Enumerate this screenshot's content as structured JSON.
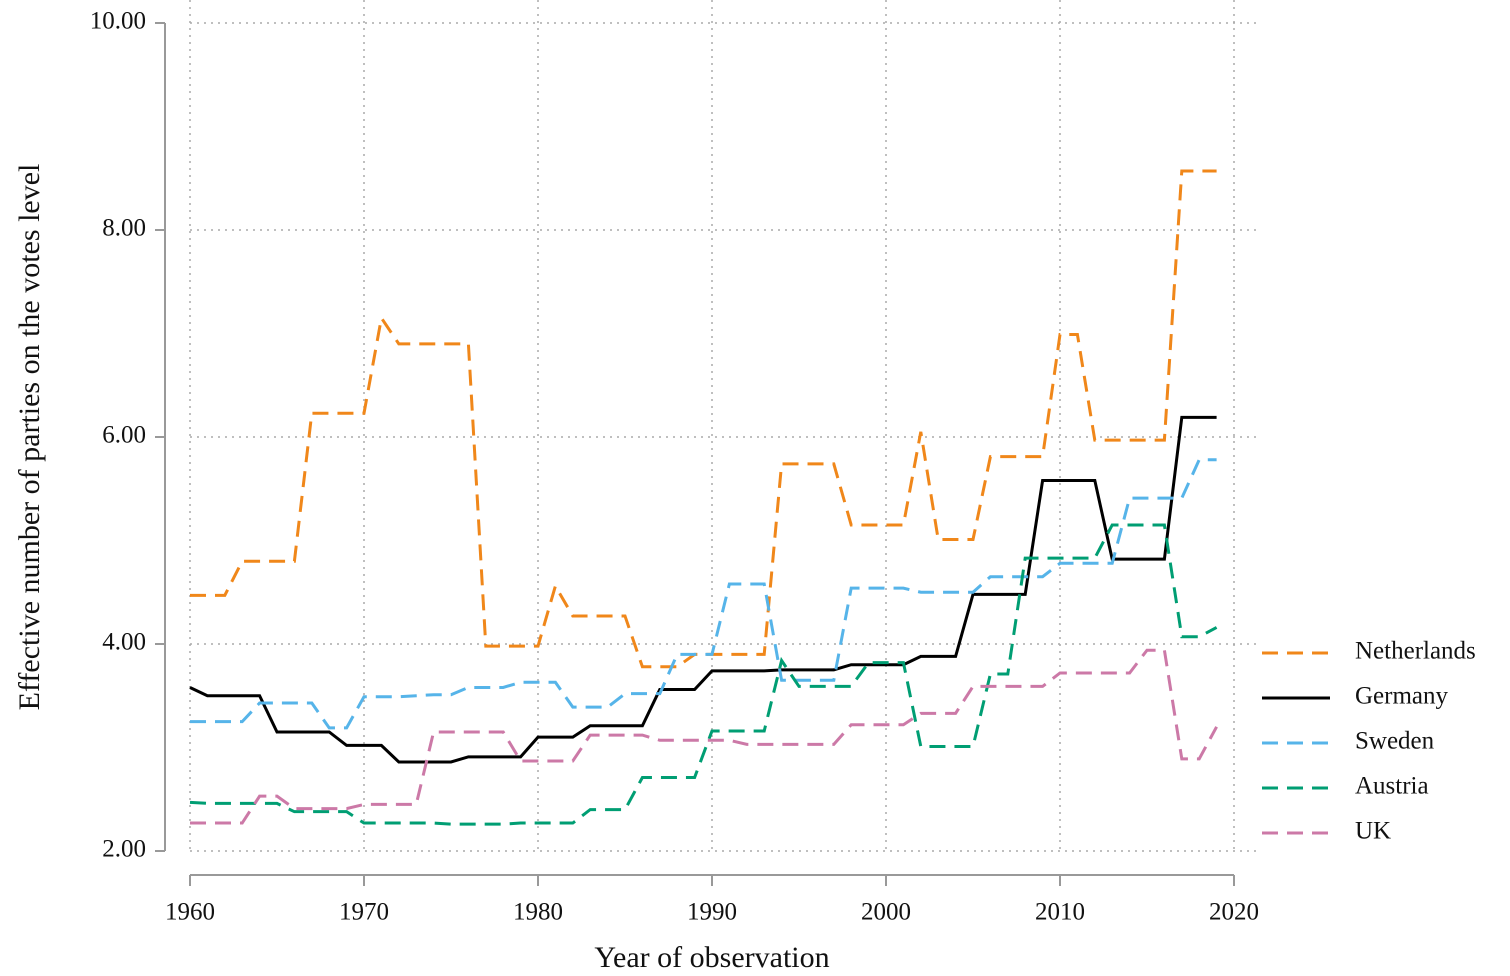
{
  "chart_data": {
    "type": "line",
    "y_label": "Effective number of parties on the votes level",
    "x_label": "Year of observation",
    "x": [
      1960,
      1961,
      1962,
      1963,
      1964,
      1965,
      1966,
      1967,
      1968,
      1969,
      1970,
      1971,
      1972,
      1973,
      1974,
      1975,
      1976,
      1977,
      1978,
      1979,
      1980,
      1981,
      1982,
      1983,
      1984,
      1985,
      1986,
      1987,
      1988,
      1989,
      1990,
      1991,
      1992,
      1993,
      1994,
      1995,
      1996,
      1997,
      1998,
      1999,
      2000,
      2001,
      2002,
      2003,
      2004,
      2005,
      2006,
      2007,
      2008,
      2009,
      2010,
      2011,
      2012,
      2013,
      2014,
      2015,
      2016,
      2017,
      2018,
      2019
    ],
    "series": [
      {
        "name": "Netherlands",
        "color": "#f0871a",
        "linestyle": "dashed",
        "values": [
          4.47,
          4.47,
          4.47,
          4.8,
          4.8,
          4.8,
          4.8,
          6.23,
          6.23,
          6.23,
          6.23,
          7.15,
          6.9,
          6.9,
          6.9,
          6.9,
          6.9,
          3.98,
          3.98,
          3.98,
          3.98,
          4.56,
          4.27,
          4.27,
          4.27,
          4.27,
          3.78,
          3.78,
          3.78,
          3.9,
          3.9,
          3.9,
          3.9,
          3.9,
          5.74,
          5.74,
          5.74,
          5.74,
          5.15,
          5.15,
          5.15,
          5.15,
          6.05,
          5.01,
          5.01,
          5.01,
          5.81,
          5.81,
          5.81,
          5.81,
          6.99,
          6.99,
          5.97,
          5.97,
          5.97,
          5.97,
          5.97,
          8.57,
          8.57,
          8.57
        ]
      },
      {
        "name": "Germany",
        "color": "#000000",
        "linestyle": "solid",
        "values": [
          3.58,
          3.5,
          3.5,
          3.5,
          3.5,
          3.15,
          3.15,
          3.15,
          3.15,
          3.02,
          3.02,
          3.02,
          2.86,
          2.86,
          2.86,
          2.86,
          2.91,
          2.91,
          2.91,
          2.91,
          3.1,
          3.1,
          3.1,
          3.21,
          3.21,
          3.21,
          3.21,
          3.56,
          3.56,
          3.56,
          3.74,
          3.74,
          3.74,
          3.74,
          3.75,
          3.75,
          3.75,
          3.75,
          3.8,
          3.8,
          3.8,
          3.8,
          3.88,
          3.88,
          3.88,
          4.48,
          4.48,
          4.48,
          4.48,
          5.58,
          5.58,
          5.58,
          5.58,
          4.82,
          4.82,
          4.82,
          4.82,
          6.19,
          6.19,
          6.19
        ]
      },
      {
        "name": "Sweden",
        "color": "#56b4e9",
        "linestyle": "dashed",
        "values": [
          3.25,
          3.25,
          3.25,
          3.25,
          3.43,
          3.43,
          3.43,
          3.43,
          3.19,
          3.19,
          3.49,
          3.49,
          3.49,
          3.5,
          3.51,
          3.51,
          3.58,
          3.58,
          3.58,
          3.63,
          3.63,
          3.63,
          3.39,
          3.39,
          3.39,
          3.52,
          3.52,
          3.52,
          3.9,
          3.9,
          3.9,
          4.58,
          4.58,
          4.58,
          3.65,
          3.65,
          3.65,
          3.65,
          4.54,
          4.54,
          4.54,
          4.54,
          4.5,
          4.5,
          4.5,
          4.5,
          4.65,
          4.65,
          4.65,
          4.65,
          4.78,
          4.78,
          4.78,
          4.78,
          5.41,
          5.41,
          5.41,
          5.41,
          5.78,
          5.78
        ]
      },
      {
        "name": "Austria",
        "color": "#009e73",
        "linestyle": "dashed",
        "values": [
          2.47,
          2.46,
          2.46,
          2.46,
          2.46,
          2.46,
          2.38,
          2.38,
          2.38,
          2.38,
          2.27,
          2.27,
          2.27,
          2.27,
          2.27,
          2.26,
          2.26,
          2.26,
          2.26,
          2.27,
          2.27,
          2.27,
          2.27,
          2.4,
          2.4,
          2.4,
          2.71,
          2.71,
          2.71,
          2.71,
          3.16,
          3.16,
          3.16,
          3.16,
          3.84,
          3.59,
          3.59,
          3.59,
          3.59,
          3.82,
          3.82,
          3.82,
          3.01,
          3.01,
          3.01,
          3.01,
          3.71,
          3.71,
          4.83,
          4.83,
          4.83,
          4.83,
          4.83,
          5.15,
          5.15,
          5.15,
          5.15,
          4.07,
          4.07,
          4.16
        ]
      },
      {
        "name": "UK",
        "color": "#cc79a7",
        "linestyle": "dashed",
        "values": [
          2.27,
          2.27,
          2.27,
          2.27,
          2.53,
          2.53,
          2.41,
          2.41,
          2.41,
          2.41,
          2.45,
          2.45,
          2.45,
          2.45,
          3.15,
          3.15,
          3.15,
          3.15,
          3.15,
          2.87,
          2.87,
          2.87,
          2.87,
          3.12,
          3.12,
          3.12,
          3.12,
          3.07,
          3.07,
          3.07,
          3.07,
          3.07,
          3.03,
          3.03,
          3.03,
          3.03,
          3.03,
          3.03,
          3.22,
          3.22,
          3.22,
          3.22,
          3.33,
          3.33,
          3.33,
          3.59,
          3.59,
          3.59,
          3.59,
          3.59,
          3.72,
          3.72,
          3.72,
          3.72,
          3.72,
          3.94,
          3.94,
          2.89,
          2.89,
          3.2
        ]
      }
    ],
    "xlim": [
      1960,
      2020
    ],
    "xticks": [
      1960,
      1970,
      1980,
      1990,
      2000,
      2010,
      2020
    ],
    "ylim": [
      2,
      10
    ],
    "yticks": [
      {
        "value": 2,
        "label": "2.00"
      },
      {
        "value": 4,
        "label": "4.00"
      },
      {
        "value": 6,
        "label": "6.00"
      },
      {
        "value": 8,
        "label": "8.00"
      },
      {
        "value": 10,
        "label": "10.00"
      }
    ],
    "grid": true,
    "legend": "right"
  }
}
